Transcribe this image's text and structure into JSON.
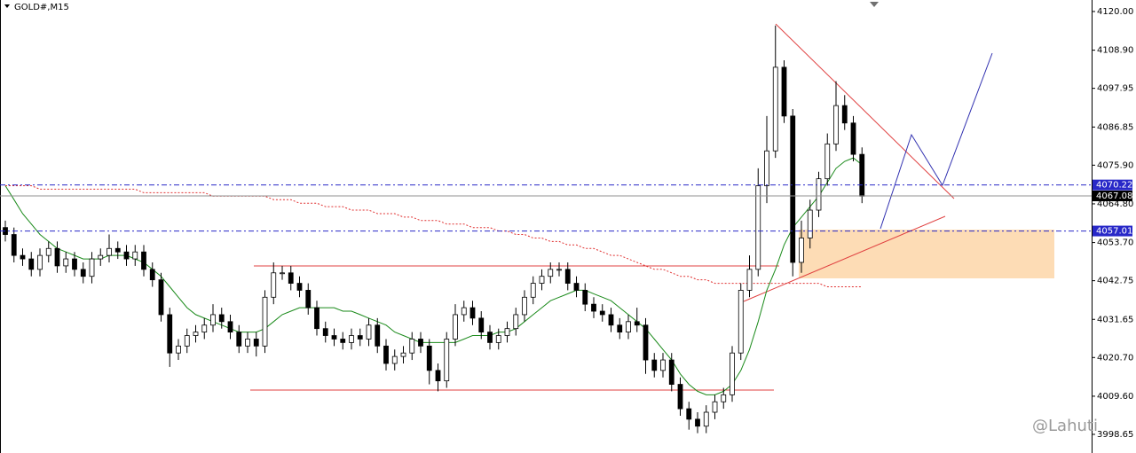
{
  "chart_data": {
    "type": "candlestick",
    "title": "GOLD#,M15",
    "watermark": "@Lahuti",
    "ylim": [
      3993.3,
      4123.3
    ],
    "yticks": [
      {
        "value": 4120,
        "label": "4120.00"
      },
      {
        "value": 4108.9,
        "label": "4108.90"
      },
      {
        "value": 4097.95,
        "label": "4097.95"
      },
      {
        "value": 4086.85,
        "label": "4086.85"
      },
      {
        "value": 4075.9,
        "label": "4075.90"
      },
      {
        "value": 4064.8,
        "label": "4064.80"
      },
      {
        "value": 4053.7,
        "label": "4053.70"
      },
      {
        "value": 4042.75,
        "label": "4042.75"
      },
      {
        "value": 4031.65,
        "label": "4031.65"
      },
      {
        "value": 4020.7,
        "label": "4020.70"
      },
      {
        "value": 4009.6,
        "label": "4009.60"
      },
      {
        "value": 3998.65,
        "label": "3998.65"
      }
    ],
    "open": [
      4058,
      4056,
      4050,
      4049,
      4046,
      4050,
      4052,
      4047,
      4049,
      4046,
      4044,
      4049,
      4050,
      4052,
      4051,
      4049,
      4051,
      4046,
      4043,
      4033,
      4022,
      4024,
      4027,
      4028,
      4030,
      4033,
      4031,
      4028,
      4024,
      4026,
      4024,
      4038,
      4045,
      4045,
      4042,
      4040,
      4035,
      4029,
      4027,
      4026,
      4025,
      4027,
      4026,
      4030,
      4024,
      4019,
      4021,
      4022,
      4026,
      4024,
      4017,
      4014,
      4026,
      4033,
      4035,
      4032,
      4028,
      4025,
      4027,
      4029,
      4033,
      4038,
      4042,
      4044,
      4046,
      4046,
      4042,
      4040,
      4036,
      4034,
      4033,
      4030,
      4028,
      4031,
      4030,
      4020,
      4017,
      4020,
      4013,
      4006,
      4003,
      4001,
      4005,
      4008,
      4010,
      4022,
      4040,
      4046,
      4070,
      4080,
      4104,
      4090,
      4048,
      4055,
      4063,
      4072,
      4082,
      4093,
      4088,
      4079
    ],
    "high": [
      4060,
      4058,
      4052,
      4051,
      4052,
      4054,
      4054,
      4051,
      4051,
      4048,
      4051,
      4052,
      4056,
      4054,
      4053,
      4053,
      4053,
      4048,
      4045,
      4035,
      4026,
      4029,
      4030,
      4032,
      4036,
      4035,
      4033,
      4030,
      4028,
      4028,
      4040,
      4048,
      4047,
      4047,
      4044,
      4042,
      4037,
      4031,
      4029,
      4028,
      4029,
      4029,
      4032,
      4032,
      4026,
      4023,
      4024,
      4028,
      4028,
      4026,
      4019,
      4028,
      4036,
      4037,
      4037,
      4034,
      4030,
      4029,
      4031,
      4035,
      4040,
      4044,
      4046,
      4048,
      4048,
      4048,
      4044,
      4042,
      4038,
      4036,
      4035,
      4032,
      4033,
      4035,
      4032,
      4022,
      4022,
      4022,
      4015,
      4008,
      4005,
      4007,
      4010,
      4012,
      4024,
      4042,
      4050,
      4075,
      4090,
      4116,
      4106,
      4092,
      4060,
      4066,
      4074,
      4085,
      4100,
      4096,
      4090,
      4081
    ],
    "low": [
      4054,
      4048,
      4047,
      4044,
      4044,
      4048,
      4045,
      4045,
      4044,
      4042,
      4042,
      4047,
      4048,
      4049,
      4047,
      4047,
      4044,
      4041,
      4031,
      4018,
      4020,
      4022,
      4025,
      4026,
      4028,
      4029,
      4026,
      4022,
      4022,
      4021,
      4022,
      4036,
      4043,
      4040,
      4038,
      4033,
      4027,
      4025,
      4024,
      4023,
      4023,
      4024,
      4024,
      4022,
      4017,
      4017,
      4019,
      4020,
      4022,
      4013,
      4011,
      4012,
      4024,
      4031,
      4030,
      4026,
      4023,
      4023,
      4025,
      4027,
      4031,
      4036,
      4040,
      4042,
      4044,
      4040,
      4038,
      4034,
      4032,
      4031,
      4028,
      4026,
      4026,
      4028,
      4016,
      4015,
      4015,
      4011,
      4004,
      4000,
      3999,
      3999,
      4003,
      4006,
      4008,
      4020,
      4038,
      4044,
      4065,
      4078,
      4088,
      4044,
      4045,
      4052,
      4061,
      4070,
      4080,
      4086,
      4077,
      4065
    ],
    "close": [
      4056,
      4050,
      4049,
      4046,
      4050,
      4052,
      4047,
      4049,
      4046,
      4044,
      4049,
      4050,
      4052,
      4051,
      4049,
      4051,
      4046,
      4043,
      4033,
      4022,
      4024,
      4027,
      4028,
      4030,
      4033,
      4031,
      4028,
      4024,
      4026,
      4024,
      4038,
      4045,
      4045,
      4042,
      4040,
      4035,
      4029,
      4027,
      4026,
      4025,
      4027,
      4026,
      4030,
      4024,
      4019,
      4021,
      4022,
      4026,
      4024,
      4017,
      4014,
      4026,
      4033,
      4035,
      4032,
      4028,
      4025,
      4027,
      4029,
      4033,
      4038,
      4042,
      4044,
      4046,
      4046,
      4042,
      4040,
      4036,
      4034,
      4033,
      4030,
      4028,
      4031,
      4030,
      4020,
      4017,
      4020,
      4013,
      4006,
      4003,
      4001,
      4005,
      4008,
      4010,
      4022,
      4040,
      4046,
      4070,
      4080,
      4104,
      4090,
      4048,
      4055,
      4063,
      4072,
      4082,
      4093,
      4088,
      4079,
      4067
    ],
    "series": [
      {
        "color": "#1a8a1a",
        "dash": false,
        "values": [
          4070,
          4066,
          4062,
          4059,
          4056,
          4054,
          4052,
          4051,
          4050,
          4049,
          4049,
          4049,
          4050,
          4050,
          4050,
          4049,
          4048,
          4046,
          4044,
          4041,
          4038,
          4035,
          4033,
          4032,
          4031,
          4030,
          4029,
          4028,
          4028,
          4028,
          4029,
          4031,
          4033,
          4034,
          4035,
          4035,
          4035,
          4035,
          4035,
          4034,
          4034,
          4033,
          4032,
          4031,
          4030,
          4028,
          4027,
          4026,
          4025,
          4025,
          4025,
          4025,
          4025,
          4026,
          4027,
          4027,
          4027,
          4028,
          4028,
          4029,
          4031,
          4033,
          4035,
          4037,
          4038,
          4039,
          4040,
          4040,
          4039,
          4038,
          4037,
          4035,
          4033,
          4031,
          4029,
          4026,
          4023,
          4020,
          4016,
          4013,
          4011,
          4010,
          4010,
          4011,
          4013,
          4017,
          4023,
          4031,
          4040,
          4046,
          4053,
          4058,
          4061,
          4064,
          4067,
          4071,
          4075,
          4077,
          4078,
          4076
        ]
      },
      {
        "color": "#e03030",
        "dash": true,
        "values": [
          4070,
          4070,
          4070,
          4070,
          4069,
          4069,
          4069,
          4069,
          4069,
          4069,
          4069,
          4069,
          4069,
          4069,
          4069,
          4069,
          4068,
          4068,
          4068,
          4068,
          4068,
          4068,
          4068,
          4068,
          4067,
          4067,
          4067,
          4067,
          4067,
          4067,
          4067,
          4066,
          4066,
          4066,
          4065,
          4065,
          4065,
          4064,
          4064,
          4064,
          4063,
          4063,
          4063,
          4062,
          4062,
          4062,
          4061,
          4061,
          4060,
          4060,
          4060,
          4059,
          4059,
          4059,
          4058,
          4058,
          4058,
          4057,
          4057,
          4056,
          4056,
          4055,
          4055,
          4054,
          4054,
          4053,
          4053,
          4052,
          4052,
          4051,
          4050,
          4050,
          4049,
          4048,
          4047,
          4046,
          4046,
          4045,
          4044,
          4044,
          4043,
          4043,
          4042,
          4042,
          4042,
          4042,
          4042,
          4042,
          4042,
          4042,
          4042,
          4042,
          4042,
          4042,
          4042,
          4041,
          4041,
          4041,
          4041,
          4041
        ]
      }
    ],
    "price_lines": [
      {
        "value": 4070.22,
        "color": "#2828c8",
        "dash": true
      },
      {
        "value": 4067.08,
        "color": "#000000",
        "dash": false
      },
      {
        "value": 4057.01,
        "color": "#2828c8",
        "dash": true
      }
    ]
  }
}
